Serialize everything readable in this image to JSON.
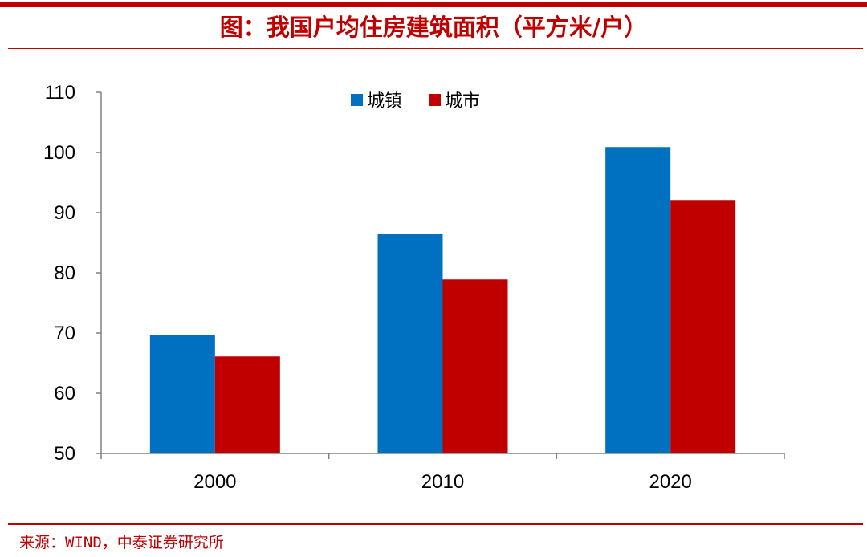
{
  "header": {
    "title": "图：我国户均住房建筑面积（平方米/户）"
  },
  "footer": {
    "source": "来源：WIND，中泰证券研究所"
  },
  "colors": {
    "accent": "#c00000",
    "series_town": "#0070c0",
    "series_city": "#c00000"
  },
  "chart_data": {
    "type": "bar",
    "title": "图：我国户均住房建筑面积（平方米/户）",
    "categories": [
      "2000",
      "2010",
      "2020"
    ],
    "series": [
      {
        "name": "城镇",
        "values": [
          69.7,
          86.4,
          100.9
        ],
        "color": "#0070c0"
      },
      {
        "name": "城市",
        "values": [
          66.1,
          78.9,
          92.1
        ],
        "color": "#c00000"
      }
    ],
    "ylim": [
      50,
      110
    ],
    "yticks": [
      50,
      60,
      70,
      80,
      90,
      100,
      110
    ],
    "xlabel": "",
    "ylabel": "",
    "grid": false,
    "legend": "top-center"
  }
}
